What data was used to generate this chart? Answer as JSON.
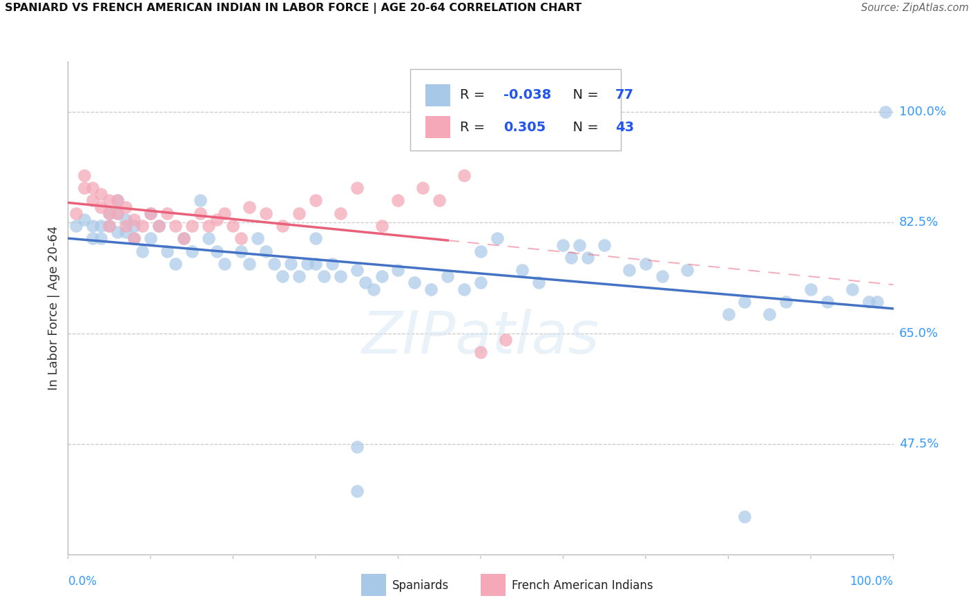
{
  "title": "SPANIARD VS FRENCH AMERICAN INDIAN IN LABOR FORCE | AGE 20-64 CORRELATION CHART",
  "source": "Source: ZipAtlas.com",
  "ylabel": "In Labor Force | Age 20-64",
  "xlim": [
    0.0,
    1.0
  ],
  "ylim": [
    0.3,
    1.08
  ],
  "plot_ylim": [
    0.3,
    1.08
  ],
  "ytick_vals": [
    0.475,
    0.65,
    0.825,
    1.0
  ],
  "ytick_labels": [
    "47.5%",
    "65.0%",
    "82.5%",
    "100.0%"
  ],
  "r_spaniard": -0.038,
  "n_spaniard": 77,
  "r_french_ai": 0.305,
  "n_french_ai": 43,
  "color_spaniard": "#a8c8e8",
  "color_french_ai": "#f4a8b8",
  "color_line_spaniard": "#4472c4",
  "color_line_french_ai": "#e8607a",
  "watermark": "ZIPatlas",
  "sp_x": [
    0.01,
    0.02,
    0.03,
    0.03,
    0.04,
    0.04,
    0.05,
    0.05,
    0.06,
    0.06,
    0.06,
    0.07,
    0.07,
    0.08,
    0.08,
    0.09,
    0.1,
    0.1,
    0.11,
    0.12,
    0.13,
    0.14,
    0.15,
    0.16,
    0.17,
    0.18,
    0.19,
    0.21,
    0.22,
    0.23,
    0.24,
    0.25,
    0.26,
    0.27,
    0.28,
    0.29,
    0.3,
    0.3,
    0.31,
    0.32,
    0.33,
    0.35,
    0.36,
    0.37,
    0.38,
    0.4,
    0.42,
    0.44,
    0.46,
    0.48,
    0.5,
    0.5,
    0.52,
    0.55,
    0.57,
    0.6,
    0.61,
    0.62,
    0.63,
    0.65,
    0.68,
    0.7,
    0.72,
    0.75,
    0.8,
    0.82,
    0.85,
    0.87,
    0.9,
    0.92,
    0.95,
    0.97,
    0.98,
    0.99,
    0.35,
    0.35,
    0.82
  ],
  "sp_y": [
    0.82,
    0.83,
    0.82,
    0.8,
    0.82,
    0.8,
    0.84,
    0.82,
    0.86,
    0.84,
    0.81,
    0.83,
    0.81,
    0.82,
    0.8,
    0.78,
    0.84,
    0.8,
    0.82,
    0.78,
    0.76,
    0.8,
    0.78,
    0.86,
    0.8,
    0.78,
    0.76,
    0.78,
    0.76,
    0.8,
    0.78,
    0.76,
    0.74,
    0.76,
    0.74,
    0.76,
    0.8,
    0.76,
    0.74,
    0.76,
    0.74,
    0.75,
    0.73,
    0.72,
    0.74,
    0.75,
    0.73,
    0.72,
    0.74,
    0.72,
    0.78,
    0.73,
    0.8,
    0.75,
    0.73,
    0.79,
    0.77,
    0.79,
    0.77,
    0.79,
    0.75,
    0.76,
    0.74,
    0.75,
    0.68,
    0.7,
    0.68,
    0.7,
    0.72,
    0.7,
    0.72,
    0.7,
    0.7,
    1.0,
    0.47,
    0.4,
    0.36
  ],
  "fr_x": [
    0.01,
    0.02,
    0.02,
    0.03,
    0.03,
    0.04,
    0.04,
    0.05,
    0.05,
    0.05,
    0.06,
    0.06,
    0.07,
    0.07,
    0.08,
    0.08,
    0.09,
    0.1,
    0.11,
    0.12,
    0.13,
    0.14,
    0.15,
    0.16,
    0.17,
    0.18,
    0.19,
    0.2,
    0.21,
    0.22,
    0.24,
    0.26,
    0.28,
    0.3,
    0.33,
    0.35,
    0.38,
    0.4,
    0.43,
    0.45,
    0.48,
    0.5,
    0.53
  ],
  "fr_y": [
    0.84,
    0.9,
    0.88,
    0.86,
    0.88,
    0.87,
    0.85,
    0.84,
    0.86,
    0.82,
    0.86,
    0.84,
    0.85,
    0.82,
    0.83,
    0.8,
    0.82,
    0.84,
    0.82,
    0.84,
    0.82,
    0.8,
    0.82,
    0.84,
    0.82,
    0.83,
    0.84,
    0.82,
    0.8,
    0.85,
    0.84,
    0.82,
    0.84,
    0.86,
    0.84,
    0.88,
    0.82,
    0.86,
    0.88,
    0.86,
    0.9,
    0.62,
    0.64
  ]
}
